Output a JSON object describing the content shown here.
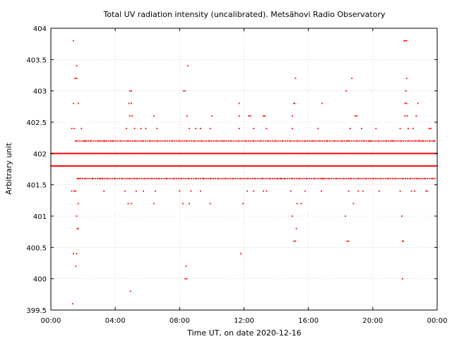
{
  "chart_data": {
    "type": "scatter",
    "title": "Total UV radiation intensity (uncalibrated). Metsähovi Radio Observatory",
    "xlabel": "Time UT, on date 2020-12-16",
    "ylabel": "Arbitrary unit",
    "xlim": [
      0,
      24
    ],
    "ylim": [
      399.5,
      404
    ],
    "x_ticks": [
      0,
      4,
      8,
      12,
      16,
      20,
      24
    ],
    "x_tick_labels": [
      "00:00",
      "04:00",
      "08:00",
      "12:00",
      "16:00",
      "20:00",
      "00:00"
    ],
    "y_ticks": [
      399.5,
      400,
      400.5,
      401,
      401.5,
      402,
      402.5,
      403,
      403.5,
      404
    ],
    "y_tick_labels": [
      "399.5",
      "400",
      "400.5",
      "401",
      "401.5",
      "402",
      "402.5",
      "403",
      "403.5",
      "404"
    ],
    "grid": true,
    "marker_color": "#ff0000",
    "x_unit": "hours UT",
    "series": [
      {
        "points": [
          [
            1.4,
            403.8
          ],
          [
            1.6,
            403.4
          ],
          [
            1.5,
            403.2
          ],
          [
            1.6,
            403.2
          ],
          [
            1.4,
            402.8
          ],
          [
            1.7,
            402.8
          ],
          [
            1.4,
            400.4
          ],
          [
            1.6,
            400.4
          ],
          [
            1.55,
            400.2
          ],
          [
            1.35,
            399.6
          ],
          [
            1.6,
            401.0
          ],
          [
            1.65,
            400.8
          ],
          [
            1.7,
            400.8
          ],
          [
            1.7,
            401.2
          ],
          [
            1.3,
            401.4
          ],
          [
            1.45,
            401.4
          ],
          [
            1.55,
            401.4
          ],
          [
            1.3,
            402.4
          ],
          [
            1.45,
            402.4
          ],
          [
            1.9,
            402.4
          ],
          [
            1.75,
            401.6
          ],
          [
            1.55,
            402.2
          ],
          [
            2.15,
            402.2
          ],
          [
            3.1,
            402.2
          ],
          [
            3.3,
            402.2
          ],
          [
            3.3,
            401.4
          ],
          [
            3.2,
            401.6
          ],
          [
            3.0,
            401.6
          ],
          [
            4.7,
            402.4
          ],
          [
            4.85,
            402.8
          ],
          [
            5.0,
            402.8
          ],
          [
            4.9,
            403.0
          ],
          [
            5.0,
            403.0
          ],
          [
            4.9,
            402.6
          ],
          [
            5.05,
            402.6
          ],
          [
            5.2,
            402.4
          ],
          [
            5.6,
            402.4
          ],
          [
            5.9,
            402.4
          ],
          [
            4.8,
            401.2
          ],
          [
            5.0,
            401.2
          ],
          [
            4.6,
            401.4
          ],
          [
            5.2,
            401.6
          ],
          [
            5.3,
            401.4
          ],
          [
            5.75,
            401.4
          ],
          [
            4.95,
            399.8
          ],
          [
            6.4,
            402.6
          ],
          [
            6.6,
            402.4
          ],
          [
            6.5,
            401.4
          ],
          [
            6.4,
            401.2
          ],
          [
            6.2,
            402.2
          ],
          [
            8.25,
            403.0
          ],
          [
            8.35,
            403.0
          ],
          [
            8.5,
            403.4
          ],
          [
            8.45,
            402.6
          ],
          [
            8.6,
            402.4
          ],
          [
            8.4,
            400.2
          ],
          [
            8.35,
            400.0
          ],
          [
            8.45,
            400.0
          ],
          [
            8.0,
            401.4
          ],
          [
            8.2,
            401.2
          ],
          [
            8.6,
            401.2
          ],
          [
            8.7,
            401.4
          ],
          [
            9.0,
            402.4
          ],
          [
            9.3,
            402.4
          ],
          [
            9.9,
            402.4
          ],
          [
            10.0,
            402.6
          ],
          [
            9.3,
            401.4
          ],
          [
            9.5,
            401.6
          ],
          [
            9.9,
            401.2
          ],
          [
            10.1,
            401.6
          ],
          [
            11.7,
            402.8
          ],
          [
            11.7,
            402.6
          ],
          [
            11.8,
            400.4
          ],
          [
            11.95,
            401.2
          ],
          [
            11.7,
            402.4
          ],
          [
            12.3,
            402.6
          ],
          [
            12.4,
            402.6
          ],
          [
            12.6,
            402.4
          ],
          [
            12.2,
            401.4
          ],
          [
            12.6,
            401.4
          ],
          [
            13.2,
            402.6
          ],
          [
            13.3,
            402.6
          ],
          [
            13.4,
            402.4
          ],
          [
            13.2,
            401.4
          ],
          [
            13.4,
            401.4
          ],
          [
            13.1,
            401.6
          ],
          [
            15.0,
            402.6
          ],
          [
            15.0,
            402.4
          ],
          [
            15.1,
            402.8
          ],
          [
            15.2,
            403.2
          ],
          [
            15.15,
            402.8
          ],
          [
            15.0,
            401.0
          ],
          [
            15.1,
            400.6
          ],
          [
            15.2,
            400.6
          ],
          [
            15.25,
            400.8
          ],
          [
            14.9,
            401.4
          ],
          [
            15.3,
            401.2
          ],
          [
            15.55,
            401.2
          ],
          [
            15.8,
            401.4
          ],
          [
            16.3,
            402.2
          ],
          [
            16.85,
            402.8
          ],
          [
            16.8,
            401.4
          ],
          [
            16.9,
            401.6
          ],
          [
            16.6,
            402.4
          ],
          [
            18.35,
            403.0
          ],
          [
            18.4,
            402.2
          ],
          [
            18.4,
            400.6
          ],
          [
            18.5,
            400.6
          ],
          [
            18.3,
            401.0
          ],
          [
            18.5,
            401.4
          ],
          [
            18.6,
            402.4
          ],
          [
            18.7,
            403.2
          ],
          [
            18.8,
            401.2
          ],
          [
            18.9,
            402.6
          ],
          [
            19.0,
            402.6
          ],
          [
            19.1,
            401.4
          ],
          [
            19.3,
            402.4
          ],
          [
            19.4,
            401.4
          ],
          [
            19.8,
            402.2
          ],
          [
            20.2,
            402.4
          ],
          [
            20.4,
            401.4
          ],
          [
            20.2,
            401.6
          ],
          [
            21.7,
            402.4
          ],
          [
            21.8,
            401.0
          ],
          [
            21.85,
            400.6
          ],
          [
            21.9,
            400.6
          ],
          [
            21.85,
            400.0
          ],
          [
            21.7,
            401.4
          ],
          [
            21.95,
            403.8
          ],
          [
            22.0,
            403.8
          ],
          [
            22.1,
            403.8
          ],
          [
            22.1,
            403.2
          ],
          [
            22.05,
            403.0
          ],
          [
            22.0,
            402.8
          ],
          [
            22.1,
            402.8
          ],
          [
            22.0,
            402.6
          ],
          [
            22.15,
            402.6
          ],
          [
            22.2,
            402.4
          ],
          [
            22.5,
            402.4
          ],
          [
            22.4,
            401.4
          ],
          [
            22.6,
            401.4
          ],
          [
            22.7,
            402.6
          ],
          [
            22.8,
            402.8
          ],
          [
            22.9,
            402.2
          ],
          [
            23.1,
            402.2
          ],
          [
            23.3,
            401.4
          ],
          [
            23.5,
            402.4
          ],
          [
            23.6,
            402.4
          ],
          [
            23.7,
            401.6
          ],
          [
            23.8,
            402.2
          ],
          [
            23.4,
            401.4
          ],
          [
            2.6,
            401.6
          ],
          [
            3.8,
            402.2
          ],
          [
            7.2,
            401.6
          ],
          [
            10.6,
            402.2
          ],
          [
            14.3,
            401.6
          ],
          [
            17.2,
            402.2
          ],
          [
            19.6,
            401.8
          ],
          [
            21.2,
            402.2
          ]
        ],
        "dense_bands": [
          {
            "y": 402.0,
            "from": 0.0,
            "to": 24.0
          },
          {
            "y": 401.8,
            "from": 0.0,
            "to": 24.0
          },
          {
            "y": 402.2,
            "from": 1.5,
            "to": 23.9
          },
          {
            "y": 401.6,
            "from": 1.6,
            "to": 23.9
          }
        ]
      }
    ]
  }
}
